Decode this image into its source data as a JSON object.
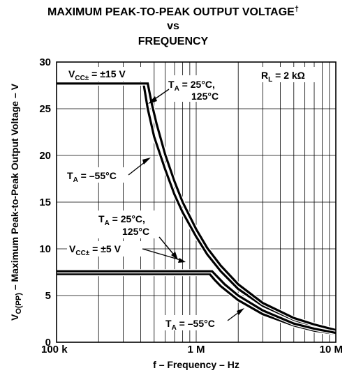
{
  "chart_data": {
    "type": "line",
    "title": [
      "MAXIMUM PEAK-TO-PEAK OUTPUT VOLTAGE",
      "vs",
      "FREQUENCY"
    ],
    "title_mark": "†",
    "xlabel": "f – Frequency – Hz",
    "ylabel": "V",
    "ylabel_sub": "O(PP)",
    "ylabel_rest": " – Maximum Peak-to-Peak Output Voltage – V",
    "xscale": "log",
    "xlim": [
      100000,
      10000000
    ],
    "ylim": [
      0,
      30
    ],
    "grid": true,
    "x_tick_labels": [
      {
        "value": 100000,
        "label": "100 k"
      },
      {
        "value": 1000000,
        "label": "1 M"
      },
      {
        "value": 10000000,
        "label": "10 M"
      }
    ],
    "y_ticks": [
      0,
      5,
      10,
      15,
      20,
      25,
      30
    ],
    "annotations": {
      "rl": {
        "pre": "R",
        "sub": "L",
        "post": " = 2 kΩ"
      },
      "vcc15": {
        "pre": "V",
        "sub": "CC±",
        "post": " = ±15 V"
      },
      "vcc5": {
        "pre": "V",
        "sub": "CC±",
        "post": " = ±5 V"
      },
      "ta_hot_top_1": {
        "pre": "T",
        "sub": "A",
        "post": " = 25°C,"
      },
      "ta_hot_top_2": "125°C",
      "ta_cold_top": {
        "pre": "T",
        "sub": "A",
        "post": " = –55°C"
      },
      "ta_hot_bot_1": {
        "pre": "T",
        "sub": "A",
        "post": " = 25°C,"
      },
      "ta_hot_bot_2": "125°C",
      "ta_cold_bot": {
        "pre": "T",
        "sub": "A",
        "post": " = –55°C"
      }
    },
    "series": [
      {
        "supply": "±15 V",
        "condition": "25°C, 125°C",
        "x": [
          100000,
          420000,
          450000,
          500000,
          600000,
          700000,
          800000,
          1000000,
          1200000,
          1500000,
          2000000,
          3000000,
          5000000,
          7000000,
          10000000
        ],
        "y": [
          27.7,
          27.7,
          25.0,
          22.0,
          18.5,
          15.8,
          13.9,
          11.3,
          9.4,
          7.6,
          5.7,
          3.9,
          2.4,
          1.7,
          1.2
        ]
      },
      {
        "supply": "±15 V",
        "condition": "–55°C",
        "x": [
          100000,
          450000,
          480000,
          520000,
          600000,
          700000,
          800000,
          1000000,
          1200000,
          1500000,
          2000000,
          3000000,
          5000000,
          7000000,
          10000000
        ],
        "y": [
          27.7,
          27.7,
          25.6,
          23.4,
          20.1,
          17.2,
          15.0,
          12.1,
          10.1,
          8.2,
          6.2,
          4.2,
          2.6,
          1.9,
          1.3
        ]
      },
      {
        "supply": "±5 V",
        "condition": "25°C, 125°C",
        "x": [
          100000,
          1250000,
          1350000,
          1500000,
          2000000,
          3000000,
          5000000,
          7000000,
          10000000
        ],
        "y": [
          7.3,
          7.3,
          6.7,
          6.0,
          4.5,
          3.0,
          1.8,
          1.25,
          0.9
        ]
      },
      {
        "supply": "±5 V",
        "condition": "–55°C",
        "x": [
          100000,
          1300000,
          1400000,
          1600000,
          2000000,
          3000000,
          5000000,
          7000000,
          10000000
        ],
        "y": [
          7.6,
          7.6,
          7.1,
          6.2,
          5.0,
          3.4,
          2.0,
          1.45,
          1.0
        ]
      }
    ]
  }
}
